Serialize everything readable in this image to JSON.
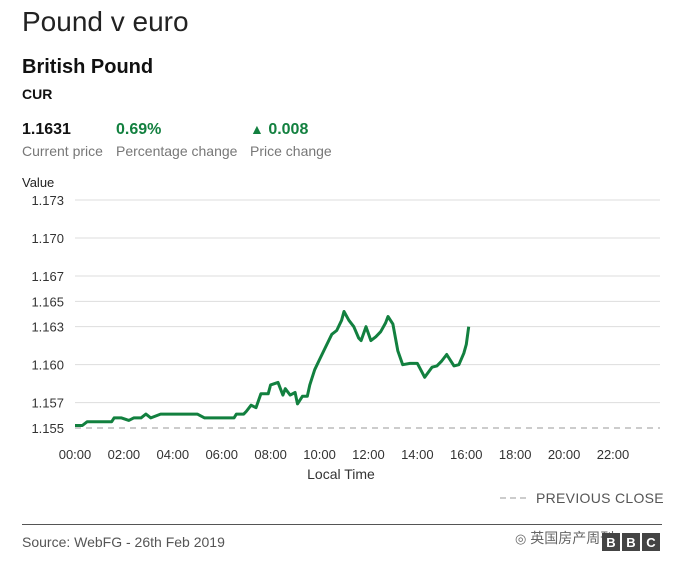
{
  "header": {
    "title": "Pound v euro",
    "instrument_name": "British Pound",
    "instrument_type": "CUR"
  },
  "stats": {
    "current_price": "1.1631",
    "current_price_label": "Current price",
    "percentage_change": "0.69%",
    "percentage_change_label": "Percentage change",
    "price_change": "0.008",
    "price_change_label": "Price change",
    "change_direction": "up",
    "positive_color": "#12803f"
  },
  "footer": {
    "source": "Source: WebFG - 26th Feb 2019",
    "watermark": "英国房产周刊",
    "logo_letters": [
      "B",
      "B",
      "C"
    ]
  },
  "chart_data": {
    "type": "line",
    "title": "",
    "ylabel": "Value",
    "xlabel": "Local Time",
    "ylim": [
      1.155,
      1.173
    ],
    "xlim": [
      0,
      24
    ],
    "y_ticks": [
      "1.155",
      "1.157",
      "1.160",
      "1.163",
      "1.165",
      "1.167",
      "1.170",
      "1.173"
    ],
    "x_ticks": [
      "00:00",
      "02:00",
      "04:00",
      "06:00",
      "08:00",
      "10:00",
      "12:00",
      "14:00",
      "16:00",
      "18:00",
      "20:00",
      "22:00"
    ],
    "grid": true,
    "line_color": "#12803f",
    "reference_color": "#cccccc",
    "legend_position": "bottom-right",
    "previous_close": {
      "label": "PREVIOUS CLOSE",
      "value": 1.155
    },
    "series": [
      {
        "x": [
          0.0,
          0.3,
          0.5,
          1.0,
          1.5,
          1.6,
          1.9,
          2.2,
          2.4,
          2.7,
          2.9,
          3.1,
          3.5,
          4.0,
          4.5,
          5.0,
          5.3,
          5.5,
          6.0,
          6.5,
          6.6,
          6.9,
          7.0,
          7.2,
          7.4,
          7.6,
          7.9,
          8.0,
          8.3,
          8.5,
          8.6,
          8.8,
          9.0,
          9.1,
          9.3,
          9.5,
          9.6,
          9.8,
          10.0,
          10.2,
          10.5,
          10.7,
          10.9,
          11.0,
          11.2,
          11.4,
          11.6,
          11.7,
          11.9,
          12.1,
          12.3,
          12.5,
          12.7,
          12.8,
          13.0,
          13.2,
          13.4,
          13.7,
          14.0,
          14.3,
          14.6,
          14.8,
          15.0,
          15.2,
          15.5,
          15.7,
          15.9,
          16.0,
          16.1
        ],
        "y": [
          1.1552,
          1.1552,
          1.1555,
          1.1555,
          1.1555,
          1.1558,
          1.1558,
          1.1556,
          1.1558,
          1.1558,
          1.1561,
          1.1558,
          1.1561,
          1.1561,
          1.1561,
          1.1561,
          1.1558,
          1.1558,
          1.1558,
          1.1558,
          1.1561,
          1.1561,
          1.1563,
          1.1568,
          1.1566,
          1.1577,
          1.1577,
          1.1584,
          1.1586,
          1.1576,
          1.1581,
          1.1576,
          1.1578,
          1.1569,
          1.1575,
          1.1575,
          1.1584,
          1.1596,
          1.1604,
          1.1612,
          1.1624,
          1.1627,
          1.1635,
          1.1642,
          1.1635,
          1.163,
          1.1621,
          1.1619,
          1.163,
          1.1619,
          1.1622,
          1.1626,
          1.1633,
          1.1638,
          1.1632,
          1.1611,
          1.16,
          1.1601,
          1.1601,
          1.159,
          1.1598,
          1.1599,
          1.1603,
          1.1608,
          1.1599,
          1.16,
          1.1609,
          1.1616,
          1.163
        ]
      }
    ]
  }
}
